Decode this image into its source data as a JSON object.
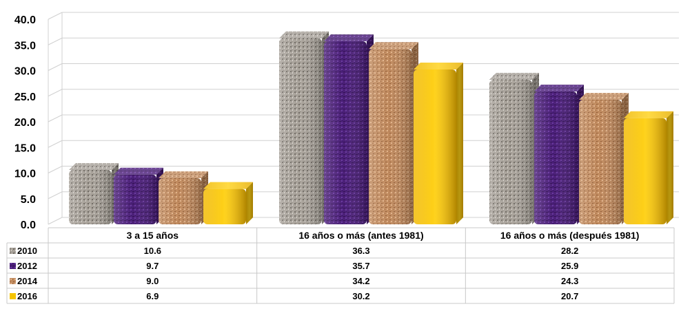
{
  "chart_data": {
    "type": "bar",
    "title": "",
    "xlabel": "",
    "ylabel": "",
    "categories": [
      "3 a 15 años",
      "16 años o más (antes 1981)",
      "16 años o más (después 1981)"
    ],
    "series": [
      {
        "name": "2010",
        "values": [
          10.6,
          36.3,
          28.2
        ],
        "color": "#a8a29a"
      },
      {
        "name": "2012",
        "values": [
          9.7,
          35.7,
          25.9
        ],
        "color": "#4b1f78"
      },
      {
        "name": "2014",
        "values": [
          9.0,
          34.2,
          24.3
        ],
        "color": "#c08a5e"
      },
      {
        "name": "2016",
        "values": [
          6.9,
          30.2,
          20.7
        ],
        "color": "#f5c400"
      }
    ],
    "ylim": [
      0,
      40
    ],
    "yticks": [
      "0.0",
      "5.0",
      "10.0",
      "15.0",
      "20.0",
      "25.0",
      "30.0",
      "35.0",
      "40.0"
    ],
    "grid": true,
    "legend": "data table",
    "data_table": [
      [
        "10.6",
        "36.3",
        "28.2"
      ],
      [
        "9.7",
        "35.7",
        "25.9"
      ],
      [
        "9.0",
        "34.2",
        "24.3"
      ],
      [
        "6.9",
        "30.2",
        "20.7"
      ]
    ]
  }
}
